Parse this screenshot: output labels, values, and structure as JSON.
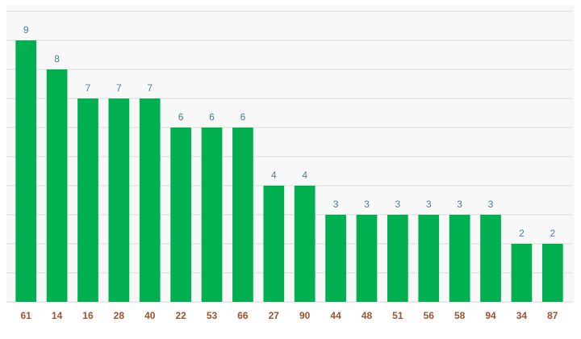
{
  "chart_data": {
    "type": "bar",
    "categories": [
      "61",
      "14",
      "16",
      "28",
      "40",
      "22",
      "53",
      "66",
      "27",
      "90",
      "44",
      "48",
      "51",
      "56",
      "58",
      "94",
      "34",
      "87"
    ],
    "values": [
      9,
      8,
      7,
      7,
      7,
      6,
      6,
      6,
      4,
      4,
      3,
      3,
      3,
      3,
      3,
      3,
      2,
      2
    ],
    "color": "#00b050",
    "ylim": [
      0,
      10
    ],
    "yticks": [
      0,
      1,
      2,
      3,
      4,
      5,
      6,
      7,
      8,
      9,
      10
    ],
    "ytick_labels": false,
    "grid": true,
    "data_labels": true
  }
}
